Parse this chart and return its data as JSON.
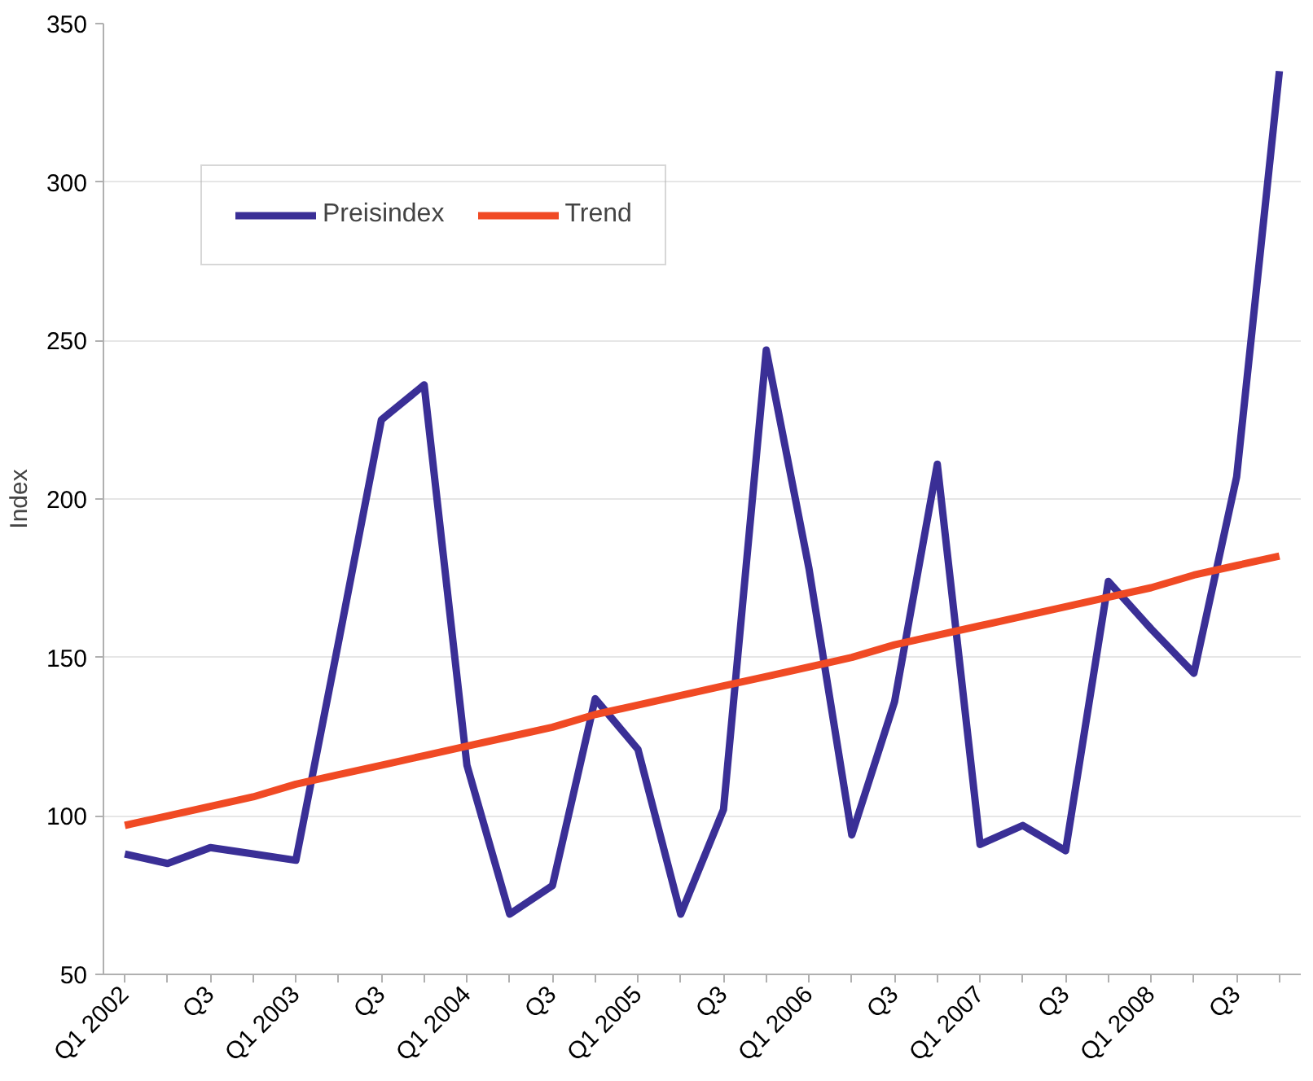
{
  "chart_data": {
    "type": "line",
    "ylabel": "Index",
    "categories": [
      "Q1 2002",
      null,
      "Q3",
      null,
      "Q1 2003",
      null,
      "Q3",
      null,
      "Q1 2004",
      null,
      "Q3",
      null,
      "Q1 2005",
      null,
      "Q3",
      null,
      "Q1 2006",
      null,
      "Q3",
      null,
      "Q1 2007",
      null,
      "Q3",
      null,
      "Q1 2008",
      null,
      "Q3",
      null
    ],
    "series": [
      {
        "name": "Preisindex",
        "color": "#3a2f96",
        "values": [
          88,
          85,
          90,
          88,
          86,
          155,
          225,
          236,
          116,
          69,
          78,
          137,
          121,
          69,
          102,
          247,
          178,
          94,
          136,
          211,
          91,
          97,
          89,
          174,
          159,
          145,
          207,
          335
        ]
      },
      {
        "name": "Trend",
        "color": "#f04a24",
        "values": [
          97,
          100,
          103,
          106,
          110,
          113,
          116,
          119,
          122,
          125,
          128,
          132,
          135,
          138,
          141,
          144,
          147,
          150,
          154,
          157,
          160,
          163,
          166,
          169,
          172,
          176,
          179,
          182
        ]
      }
    ],
    "ylim": [
      50,
      350
    ],
    "yticks": [
      50,
      100,
      150,
      200,
      250,
      300,
      350
    ],
    "grid": "y",
    "legend": "top left",
    "marker": "none",
    "line_style": "solid"
  }
}
